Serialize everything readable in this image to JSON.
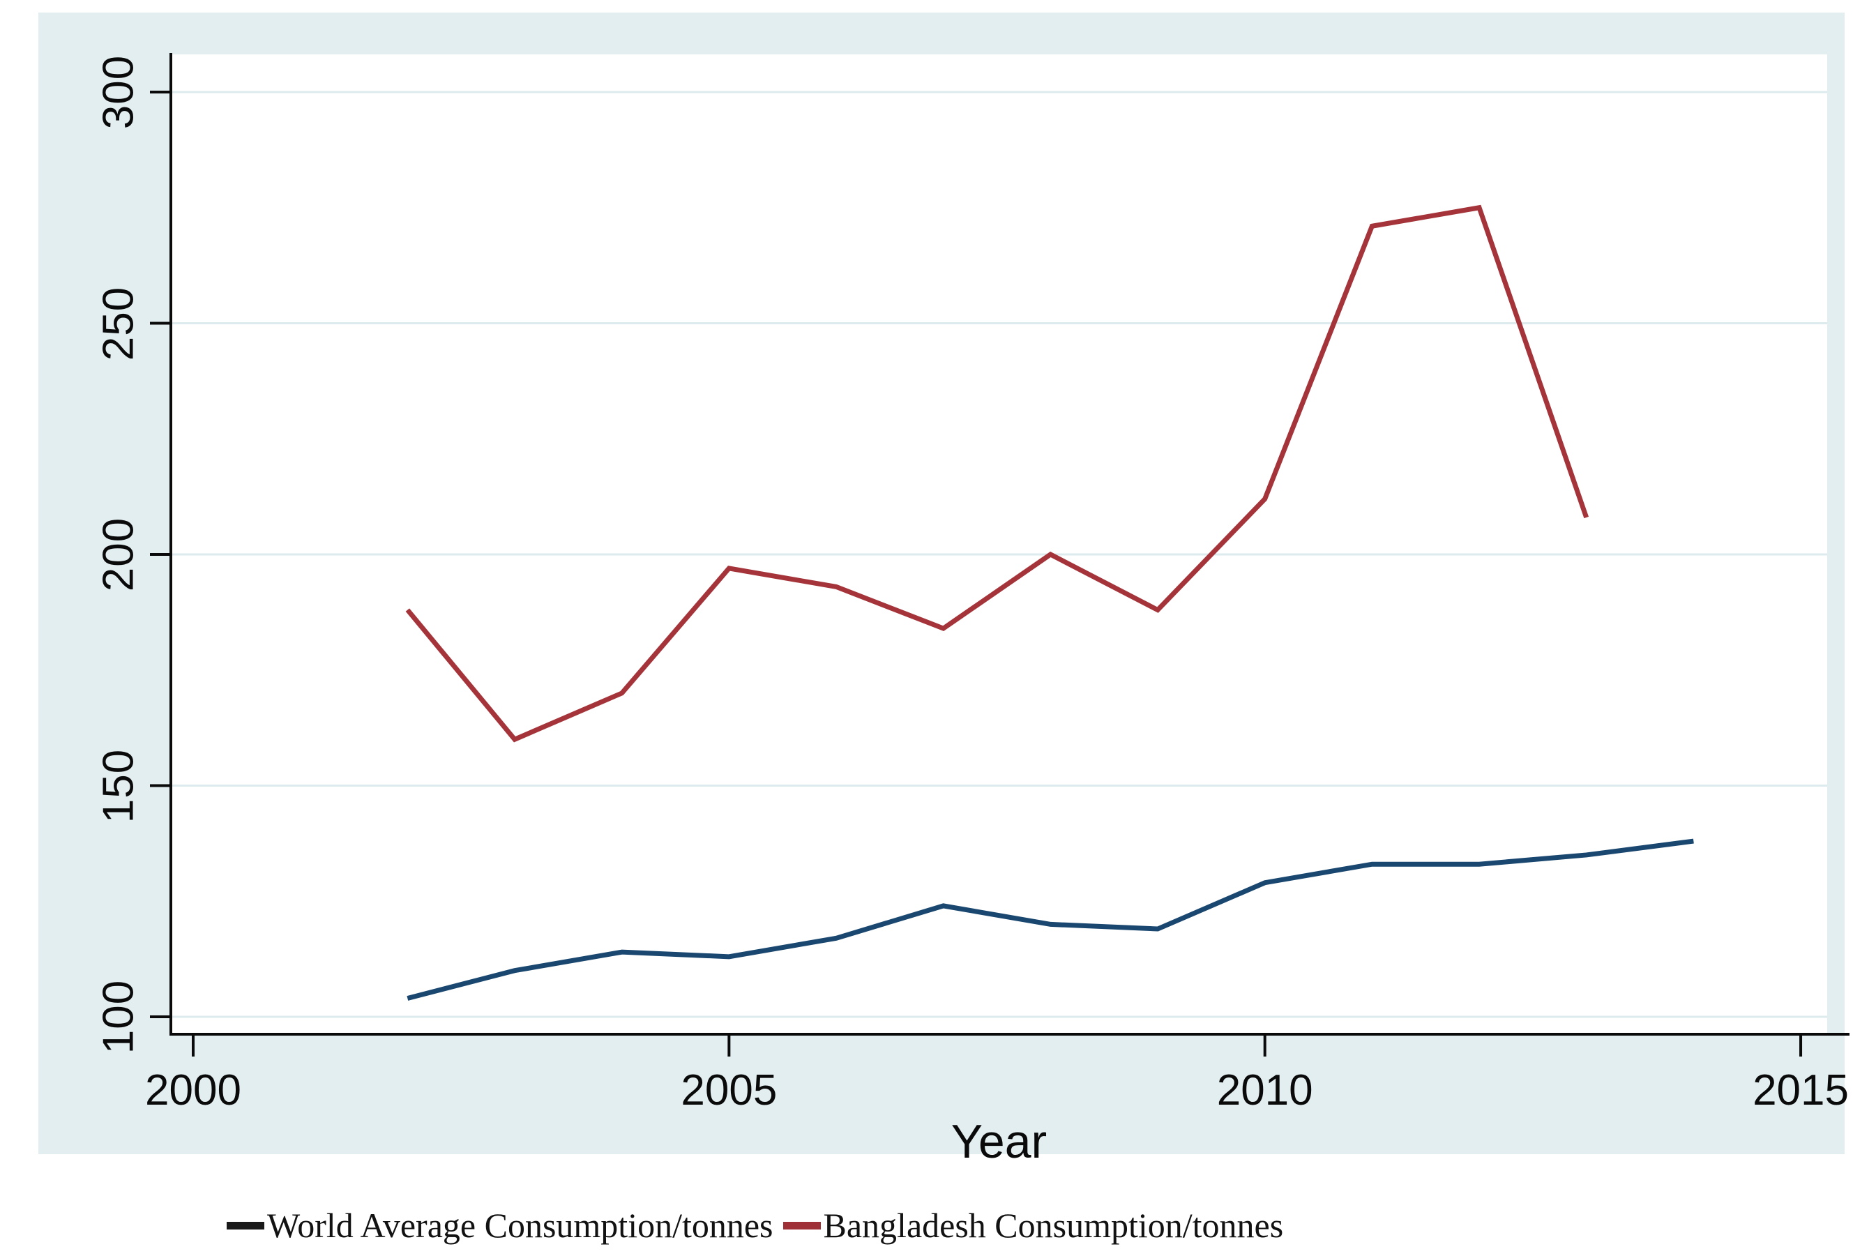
{
  "figure": {
    "x_axis_title": "Year",
    "legend": [
      {
        "label": "World Average Consumption/tonnes",
        "marker_color": "#1a1a1a"
      },
      {
        "label": "Bangladesh Consumption/tonnes",
        "marker_color": "#a03038"
      }
    ]
  },
  "colors": {
    "panel_background": "#e3eef1",
    "plot_background": "#ffffff",
    "gridline": "#deebee",
    "axis": "#0a0a0a",
    "world_line": "#1a476f",
    "bangladesh_line": "#a4343a"
  },
  "chart_data": {
    "type": "line",
    "title": "",
    "xlabel": "Year",
    "ylabel": "",
    "x_ticks": [
      2000,
      2005,
      2010,
      2015
    ],
    "y_ticks": [
      100,
      150,
      200,
      250,
      300
    ],
    "xlim": [
      1999.8,
      2015.3
    ],
    "ylim": [
      96,
      311
    ],
    "grid": "horizontal",
    "legend_position": "bottom",
    "series": [
      {
        "name": "World Average Consumption/tonnes",
        "color": "#1a476f",
        "x": [
          2002,
          2003,
          2004,
          2005,
          2006,
          2007,
          2008,
          2009,
          2010,
          2011,
          2012,
          2013,
          2014
        ],
        "values": [
          104,
          110,
          114,
          113,
          117,
          124,
          120,
          119,
          129,
          133,
          133,
          135,
          138
        ]
      },
      {
        "name": "Bangladesh Consumption/tonnes",
        "color": "#a4343a",
        "x": [
          2002,
          2003,
          2004,
          2005,
          2006,
          2007,
          2008,
          2009,
          2010,
          2011,
          2012,
          2013
        ],
        "values": [
          188,
          160,
          170,
          197,
          193,
          184,
          200,
          188,
          212,
          271,
          275,
          208
        ]
      }
    ]
  }
}
